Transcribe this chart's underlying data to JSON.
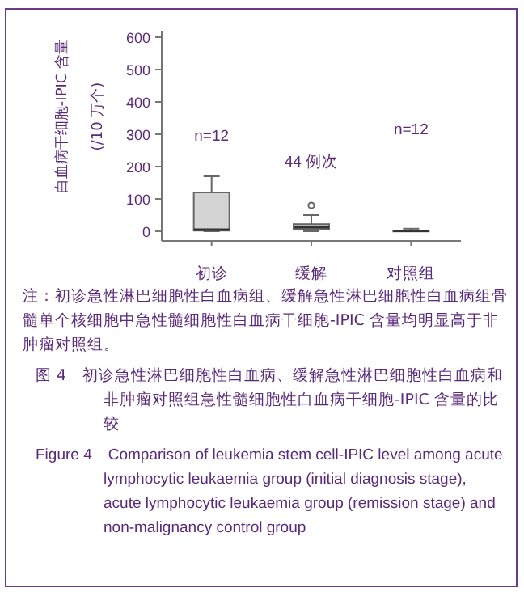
{
  "chart_data": {
    "type": "box",
    "categories": [
      "初诊",
      "缓解",
      "对照组"
    ],
    "boxes": [
      {
        "low": 0,
        "q1": 2,
        "median": 5,
        "q3": 120,
        "high": 170
      },
      {
        "low": 0,
        "q1": 5,
        "median": 12,
        "q3": 22,
        "high": 50,
        "outliers": [
          80
        ]
      },
      {
        "low": 0,
        "q1": 0,
        "median": 1,
        "q3": 2,
        "high": 8
      }
    ],
    "colors": [
      "#d4d4d4",
      "#c8c8c8",
      "#c8c8c8"
    ],
    "ylabel": "白血病干细胞-IPIC 含量\n(/10 万个)",
    "ylim": [
      -30,
      620
    ],
    "yticks": [
      0,
      100,
      200,
      300,
      400,
      500,
      600
    ],
    "annotations": [
      "n=12",
      "44 例次",
      "n=12",
      "注：初诊急性淋巴细胞性白血病组、缓解急性淋巴细胞性白血病组骨髓单个核细胞中急性髓细胞性白血病干细胞-IPIC 含量均明显高于非肿瘤对照组。",
      "图 4　初诊急性淋巴细胞性白血病、缓解急性淋巴细胞性白血病和非肿瘤对照组急性髓细胞性白血病干细胞-IPIC 含量的比较",
      "Figure 4　Comparison of leukemia stem cell-IPIC level among acute lymphocytic leukaemia group (initial diagnosis stage), acute lymphocytic leukaemia group (remission stage) and non-malignancy control group"
    ]
  }
}
